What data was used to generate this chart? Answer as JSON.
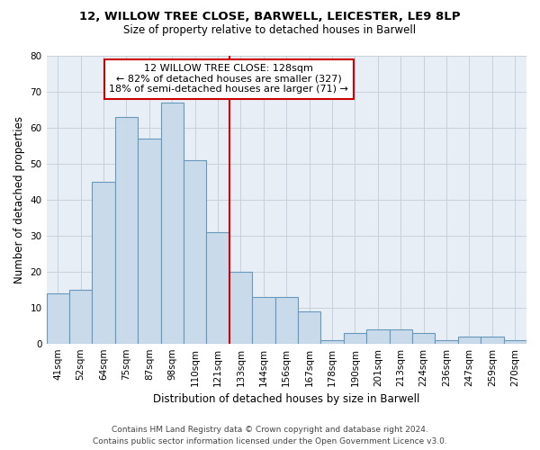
{
  "title_line1": "12, WILLOW TREE CLOSE, BARWELL, LEICESTER, LE9 8LP",
  "title_line2": "Size of property relative to detached houses in Barwell",
  "xlabel": "Distribution of detached houses by size in Barwell",
  "ylabel": "Number of detached properties",
  "categories": [
    "41sqm",
    "52sqm",
    "64sqm",
    "75sqm",
    "87sqm",
    "98sqm",
    "110sqm",
    "121sqm",
    "133sqm",
    "144sqm",
    "156sqm",
    "167sqm",
    "178sqm",
    "190sqm",
    "201sqm",
    "213sqm",
    "224sqm",
    "236sqm",
    "247sqm",
    "259sqm",
    "270sqm"
  ],
  "values": [
    14,
    15,
    45,
    63,
    57,
    67,
    51,
    31,
    20,
    13,
    13,
    9,
    1,
    3,
    4,
    4,
    3,
    1,
    2,
    2,
    1
  ],
  "bar_color": "#c9daea",
  "bar_edge_color": "#6699bb",
  "highlight_line_color": "#cc0000",
  "annotation_box_text_line1": "12 WILLOW TREE CLOSE: 128sqm",
  "annotation_box_text_line2": "← 82% of detached houses are smaller (327)",
  "annotation_box_text_line3": "18% of semi-detached houses are larger (71) →",
  "annotation_box_color": "#cc0000",
  "annotation_box_bg": "#ffffff",
  "ylim": [
    0,
    80
  ],
  "yticks": [
    0,
    10,
    20,
    30,
    40,
    50,
    60,
    70,
    80
  ],
  "grid_color": "#c8d0dc",
  "background_color": "#ffffff",
  "plot_bg_color": "#e8eef5",
  "footer_line1": "Contains HM Land Registry data © Crown copyright and database right 2024.",
  "footer_line2": "Contains public sector information licensed under the Open Government Licence v3.0.",
  "title_fontsize": 9.5,
  "subtitle_fontsize": 8.5,
  "axis_label_fontsize": 8.5,
  "tick_fontsize": 7.5,
  "annotation_fontsize": 8,
  "footer_fontsize": 6.5
}
